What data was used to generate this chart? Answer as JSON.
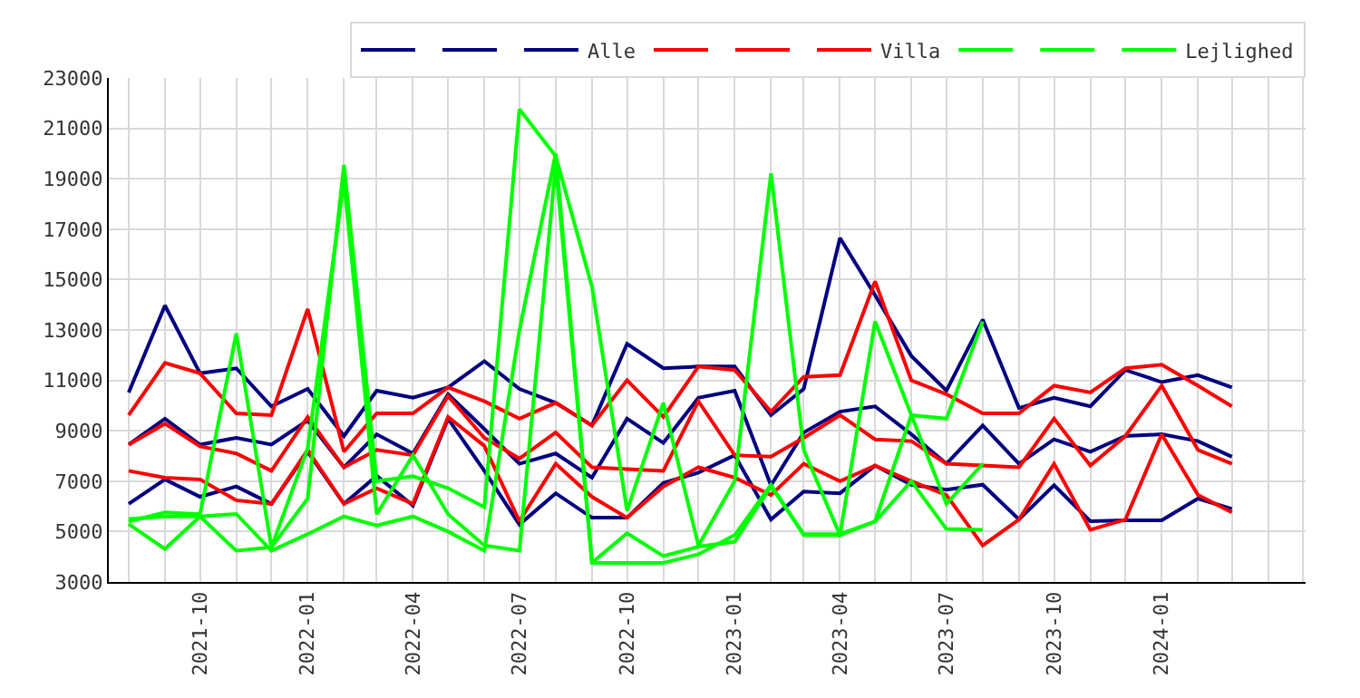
{
  "chart_data": {
    "type": "line",
    "x": [
      "2021-08",
      "2021-09",
      "2021-10",
      "2021-11",
      "2021-12",
      "2022-01",
      "2022-02",
      "2022-03",
      "2022-04",
      "2022-05",
      "2022-06",
      "2022-07",
      "2022-08",
      "2022-09",
      "2022-10",
      "2022-11",
      "2022-12",
      "2023-01",
      "2023-02",
      "2023-03",
      "2023-04",
      "2023-05",
      "2023-06",
      "2023-07",
      "2023-08",
      "2023-09",
      "2023-10",
      "2023-11",
      "2023-12",
      "2024-01",
      "2024-02",
      "2024-03"
    ],
    "series": [
      {
        "color": "#000080",
        "values": [
          10520,
          13970,
          11280,
          11480,
          9970,
          10660,
          8790,
          10590,
          10310,
          10720,
          11760,
          10660,
          10110,
          9210,
          12450,
          11480,
          11550,
          11550,
          9620,
          10660,
          16650,
          14380,
          11970,
          10590,
          13410,
          9900,
          10310,
          9970,
          11410,
          10930,
          11210,
          10720
        ]
      },
      {
        "color": "#000080",
        "values": [
          8450,
          9480,
          8450,
          8720,
          8450,
          9410,
          7550,
          8860,
          8100,
          10450,
          9070,
          7690,
          8100,
          7140,
          9480,
          8520,
          10310,
          10590,
          6830,
          8930,
          9760,
          9970,
          8860,
          7690,
          9210,
          7690,
          8660,
          8170,
          8790,
          8860,
          8590,
          7970
        ]
      },
      {
        "name": "Alle",
        "color": "#000080",
        "values": [
          6100,
          7070,
          6380,
          6790,
          6100,
          8170,
          6100,
          7210,
          6030,
          9480,
          7410,
          5280,
          6520,
          5550,
          5550,
          6930,
          7340,
          8030,
          5480,
          6590,
          6520,
          7620,
          6860,
          6660,
          6860,
          5480,
          6840,
          5410,
          5450,
          5450,
          6310,
          5900
        ]
      },
      {
        "color": "#ff0000",
        "values": [
          9620,
          11690,
          11280,
          9690,
          9620,
          13830,
          8170,
          9690,
          9690,
          10720,
          10170,
          9480,
          10110,
          9210,
          11000,
          9550,
          11550,
          11410,
          9760,
          11140,
          11210,
          14930,
          11000,
          10450,
          9690,
          9690,
          10790,
          10520,
          11480,
          11620,
          10790,
          9970
        ]
      },
      {
        "color": "#ff0000",
        "values": [
          8450,
          9280,
          8380,
          8100,
          7410,
          9550,
          7550,
          8240,
          8030,
          10380,
          8720,
          7900,
          8930,
          7550,
          7480,
          7410,
          10170,
          8030,
          7970,
          8720,
          9620,
          8660,
          8590,
          7690,
          7620,
          7550,
          9480,
          7620,
          8790,
          10790,
          8240,
          7690
        ]
      },
      {
        "name": "Villa",
        "color": "#ff0000",
        "values": [
          7410,
          7140,
          7070,
          6240,
          6100,
          8240,
          6100,
          6720,
          6100,
          9550,
          8400,
          5410,
          7690,
          6380,
          5550,
          6790,
          7550,
          7140,
          6450,
          7690,
          7000,
          7620,
          7000,
          6450,
          4450,
          5480,
          7690,
          5070,
          5480,
          8860,
          6450,
          5760
        ]
      },
      {
        "color": "#00ff00",
        "values": [
          5400,
          5760,
          5690,
          12860,
          4380,
          6310,
          19550,
          7000,
          7200,
          6720,
          5970,
          21760,
          19900,
          14720,
          5830,
          10110,
          4450,
          7000,
          19210,
          8240,
          4860,
          5410,
          9620,
          9480,
          13340,
          null,
          null,
          null,
          null,
          null,
          null,
          null
        ]
      },
      {
        "color": "#00ff00",
        "values": [
          5300,
          4310,
          5600,
          4240,
          4380,
          8300,
          18930,
          5690,
          8030,
          5690,
          4450,
          4240,
          19550,
          3760,
          3760,
          3760,
          4100,
          4860,
          6860,
          4860,
          4860,
          13340,
          9620,
          6100,
          7690,
          null,
          null,
          null,
          null,
          null,
          null,
          null
        ]
      },
      {
        "name": "Lejlighed",
        "color": "#00ff00",
        "values": [
          5500,
          5600,
          5600,
          5700,
          4240,
          4900,
          5600,
          5240,
          5600,
          5000,
          4240,
          13000,
          20000,
          3760,
          4930,
          4030,
          4400,
          4600,
          6800,
          4900,
          4900,
          5400,
          7000,
          5100,
          5070,
          null,
          null,
          null,
          null,
          null,
          null,
          null
        ]
      }
    ],
    "xlim": [
      "2021-07-15",
      "2024-05-03"
    ],
    "xticks": [
      {
        "value": "2021-10",
        "label": "2021-10"
      },
      {
        "value": "2022-01",
        "label": "2022-01"
      },
      {
        "value": "2022-04",
        "label": "2022-04"
      },
      {
        "value": "2022-07",
        "label": "2022-07"
      },
      {
        "value": "2022-10",
        "label": "2022-10"
      },
      {
        "value": "2023-01",
        "label": "2023-01"
      },
      {
        "value": "2023-04",
        "label": "2023-04"
      },
      {
        "value": "2023-07",
        "label": "2023-07"
      },
      {
        "value": "2023-10",
        "label": "2023-10"
      },
      {
        "value": "2024-01",
        "label": "2024-01"
      }
    ],
    "ylim": [
      3000,
      23000
    ],
    "yticks": [
      3000,
      5000,
      7000,
      9000,
      11000,
      13000,
      15000,
      17000,
      19000,
      21000,
      23000
    ],
    "grid": true,
    "legend": "top right",
    "marker": "none",
    "line_style": "solid"
  }
}
